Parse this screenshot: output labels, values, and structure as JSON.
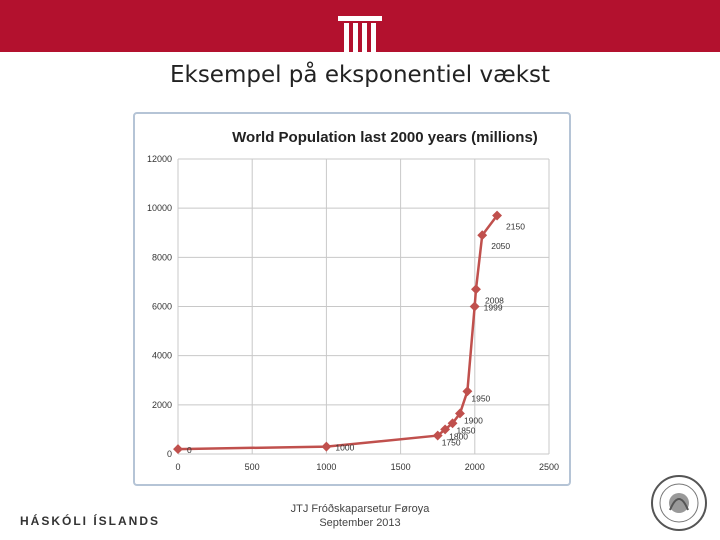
{
  "slide": {
    "title": "Eksempel på eksponentiel vækst",
    "university": "HÁSKÓLI ÍSLANDS",
    "footer_line1": "JTJ Fróðskaparsetur Føroya",
    "footer_line2": "September 2013"
  },
  "colors": {
    "top_bar": "#b3112e",
    "series": "#c0504d",
    "grid": "#c8c8c8"
  },
  "chart_data": {
    "type": "line",
    "title": "World Population last 2000  years (millions)",
    "xlabel": "",
    "ylabel": "",
    "xlim": [
      0,
      2500
    ],
    "ylim": [
      0,
      12000
    ],
    "x_ticks": [
      0,
      500,
      1000,
      1500,
      2000,
      2500
    ],
    "y_ticks": [
      0,
      2000,
      4000,
      6000,
      8000,
      10000,
      12000
    ],
    "grid": true,
    "legend": "none",
    "series": [
      {
        "x": [
          0,
          1000,
          1750,
          1800,
          1850,
          1900,
          1950,
          1999,
          2008,
          2050,
          2150
        ],
        "y": [
          200,
          300,
          750,
          1000,
          1250,
          1650,
          2550,
          6000,
          6700,
          8900,
          9700
        ]
      }
    ],
    "point_labels": [
      "0",
      "1000",
      "1750",
      "1800",
      "1850",
      "1900",
      "1950",
      "1999",
      "2008",
      "2050",
      "2150"
    ]
  }
}
